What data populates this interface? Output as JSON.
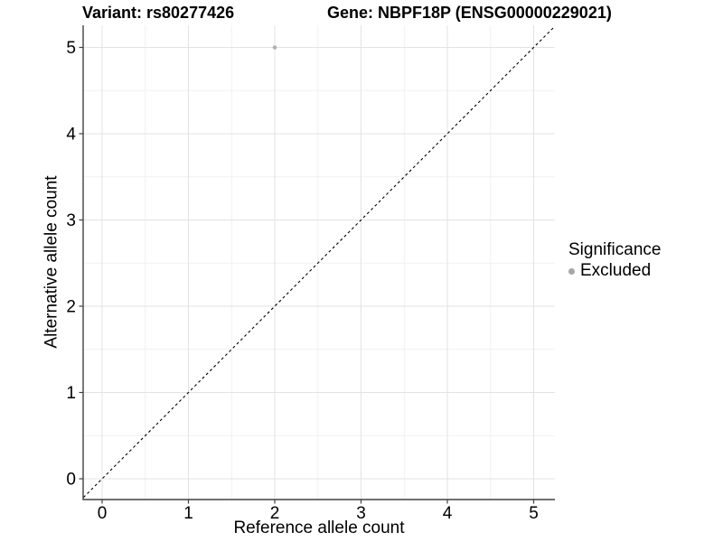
{
  "title": {
    "variant": "Variant: rs80277426",
    "gene": "Gene: NBPF18P (ENSG00000229021)"
  },
  "chart_data": {
    "type": "scatter",
    "xlabel": "Reference allele count",
    "ylabel": "Alternative allele count",
    "xlim": [
      -0.25,
      5.25
    ],
    "ylim": [
      -0.25,
      5.25
    ],
    "xticks": [
      0,
      1,
      2,
      3,
      4,
      5
    ],
    "yticks": [
      0,
      1,
      2,
      3,
      4,
      5
    ],
    "minor_grid_step": 0.5,
    "grid": "major+minor",
    "points": [
      {
        "x": 2,
        "y": 5,
        "significance": "Excluded"
      }
    ],
    "point_color": "#b3b3b3",
    "point_radius": 2.3,
    "identity_line": {
      "slope": 1,
      "intercept": 0,
      "style": "dashed",
      "color": "#000000"
    },
    "legend": {
      "title": "Significance",
      "position": "right",
      "items": [
        {
          "label": "Excluded",
          "color": "#a6a6a6",
          "marker": "circle"
        }
      ]
    },
    "colors": {
      "axis_line": "#404040",
      "tick": "#404040",
      "grid_major": "#e3e3e3",
      "grid_minor": "#f1f1f1",
      "background": "#ffffff",
      "text": "#000000"
    }
  }
}
